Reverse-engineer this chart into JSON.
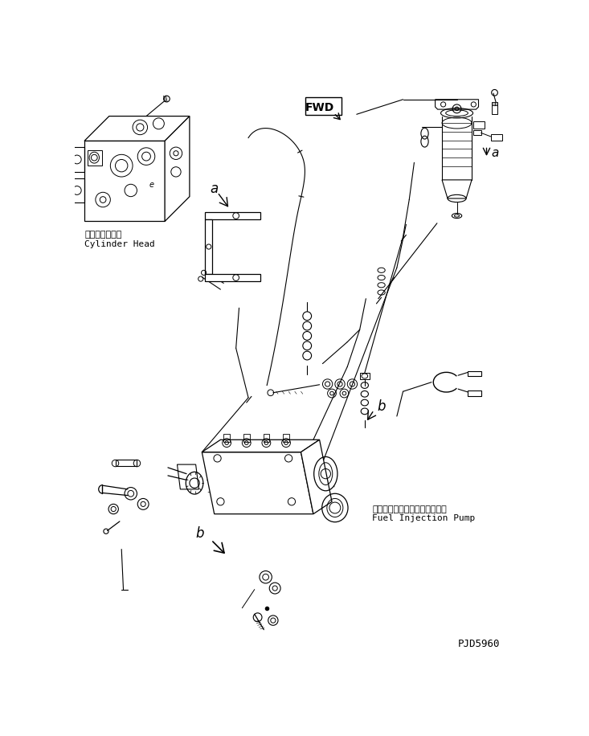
{
  "background_color": "#ffffff",
  "line_color": "#000000",
  "fig_width": 7.33,
  "fig_height": 9.16,
  "dpi": 100,
  "labels": {
    "cylinder_head_jp": "シリンダヘッド",
    "cylinder_head_en": "Cylinder Head",
    "fwd": "FWD",
    "label_a1": "a",
    "label_a2": "a",
    "label_b1": "b",
    "label_b2": "b",
    "fuel_pump_jp": "フェルインジェクションポンプ",
    "fuel_pump_en": "Fuel Injection Pump",
    "part_num": "PJD5960"
  }
}
